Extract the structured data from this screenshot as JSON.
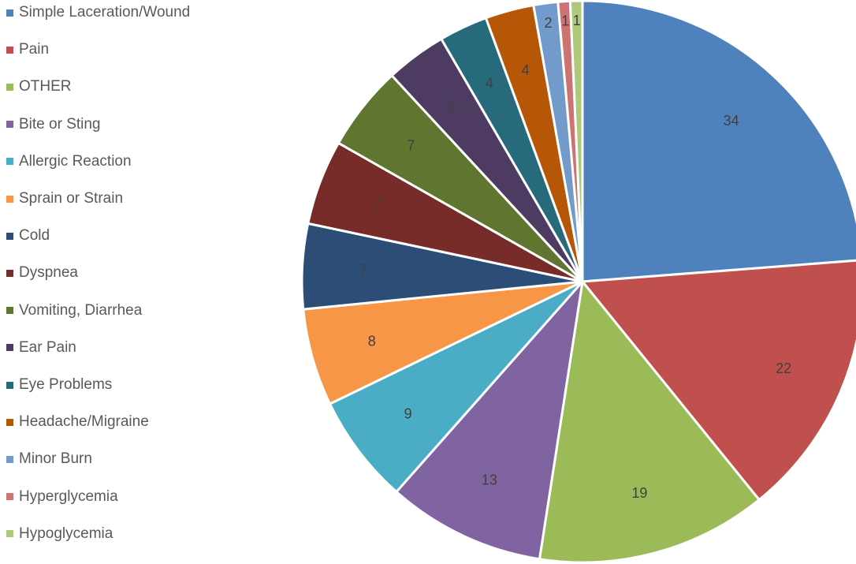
{
  "chart_data": {
    "type": "pie",
    "title": "",
    "legend_position": "left",
    "start_angle_deg": 0,
    "direction": "clockwise",
    "categories": [
      "Simple Laceration/Wound",
      "Pain",
      "OTHER",
      "Bite or Sting",
      "Allergic Reaction",
      "Sprain or Strain",
      "Cold",
      "Dyspnea",
      "Vomiting, Diarrhea",
      "Ear Pain",
      "Eye Problems",
      "Headache/Migraine",
      "Minor Burn",
      "Hyperglycemia",
      "Hypoglycemia"
    ],
    "values": [
      34,
      22,
      19,
      13,
      9,
      8,
      7,
      7,
      7,
      5,
      4,
      4,
      2,
      1,
      1
    ],
    "data_labels": [
      "34",
      "22",
      "19",
      "13",
      "9",
      "8",
      "7",
      "7",
      "7",
      "5",
      "4",
      "4",
      "2",
      "1",
      "1"
    ],
    "colors": [
      "#4F81BD",
      "#C0504D",
      "#9BBB59",
      "#8064A2",
      "#4BACC6",
      "#F79646",
      "#2C4D75",
      "#772C2A",
      "#5F7530",
      "#4D3B62",
      "#276A7C",
      "#B65708",
      "#729ACA",
      "#CD7371",
      "#AFC97A"
    ]
  }
}
